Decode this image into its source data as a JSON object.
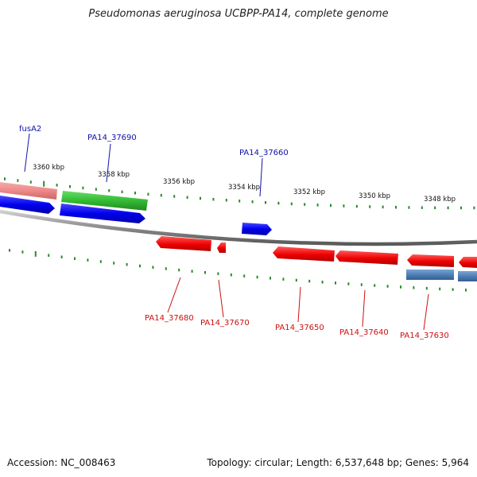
{
  "title": "Pseudomonas aeruginosa UCBPP-PA14, complete genome",
  "footer": {
    "accession": "Accession: NC_008463",
    "summary": "Topology: circular; Length: 6,537,648 bp; Genes: 5,964"
  },
  "colors": {
    "forward_gene": "#0000ee",
    "reverse_gene": "#ee0000",
    "tick": "#2a8a2a",
    "backbone": "#888888",
    "label_forward": "#1010aa",
    "label_reverse": "#cc1010",
    "highlight_green": "#33bb33",
    "highlight_pink": "#ee8888",
    "highlight_steel": "#4f7fb5"
  },
  "scale_labels": [
    "3360 kbp",
    "3358 kbp",
    "3356 kbp",
    "3354 kbp",
    "3352 kbp",
    "3350 kbp",
    "3348 kbp"
  ],
  "gene_labels": {
    "forward": [
      "fusA2",
      "PA14_37690",
      "PA14_37660"
    ],
    "reverse": [
      "PA14_37680",
      "PA14_37670",
      "PA14_37650",
      "PA14_37640",
      "PA14_37630"
    ]
  }
}
